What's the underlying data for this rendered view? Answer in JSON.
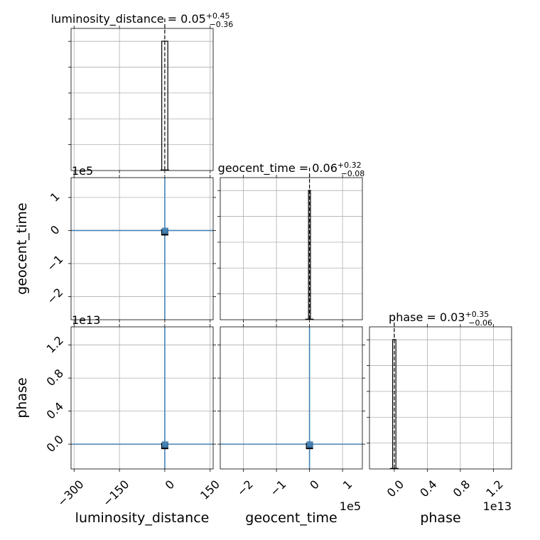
{
  "colors": {
    "series": "#4682b4",
    "frame": "#000000",
    "grid": "#b0b0b0",
    "background": "#ffffff"
  },
  "chart_data": {
    "type": "corner",
    "parameters": [
      "luminosity_distance",
      "geocent_time",
      "phase"
    ],
    "titles": {
      "luminosity_distance": {
        "text": "luminosity_distance = 0.05",
        "plus": "+0.45",
        "minus": "−0.36"
      },
      "geocent_time": {
        "text": "geocent_time = 0.06",
        "plus": "+0.32",
        "minus": "−0.08"
      },
      "phase": {
        "text": "phase = 0.03",
        "plus": "+0.35",
        "minus": "−0.06"
      }
    },
    "axis_labels": {
      "x": [
        "luminosity_distance",
        "geocent_time",
        "phase"
      ],
      "y": [
        "geocent_time",
        "phase"
      ]
    },
    "ranges": {
      "luminosity_distance": [
        -310,
        160
      ],
      "geocent_time": [
        -270000,
        160000
      ],
      "phase": [
        -3000000000000.0,
        14200000000000.0
      ]
    },
    "ticks": {
      "luminosity_distance": [
        {
          "v": -300,
          "label": "−300"
        },
        {
          "v": -150,
          "label": "−150"
        },
        {
          "v": 0,
          "label": "0"
        },
        {
          "v": 150,
          "label": "150"
        }
      ],
      "geocent_time": [
        {
          "v": -200000,
          "label": "−2"
        },
        {
          "v": -100000,
          "label": "−1"
        },
        {
          "v": 0,
          "label": "0"
        },
        {
          "v": 100000,
          "label": "1"
        }
      ],
      "phase": [
        {
          "v": 0,
          "label": "0.0"
        },
        {
          "v": 4000000000000.0,
          "label": "0.4"
        },
        {
          "v": 8000000000000.0,
          "label": "0.8"
        },
        {
          "v": 12000000000000.0,
          "label": "1.2"
        }
      ]
    },
    "y_ticks": {
      "geocent_time": [
        {
          "v": -200000,
          "label": "−2"
        },
        {
          "v": -100000,
          "label": "−1"
        },
        {
          "v": 0,
          "label": "0"
        },
        {
          "v": 100000,
          "label": "1"
        }
      ],
      "phase": [
        {
          "v": 0,
          "label": "0.0"
        },
        {
          "v": 4000000000000.0,
          "label": "0.4"
        },
        {
          "v": 8000000000000.0,
          "label": "0.8"
        },
        {
          "v": 12000000000000.0,
          "label": "1.2"
        }
      ]
    },
    "offset_texts": {
      "luminosity_distance_y": "1e5",
      "geocent_time_y": "1e13",
      "geocent_time_x": "1e5",
      "phase_x": "1e13"
    },
    "histograms": {
      "luminosity_distance": {
        "bins": [
          [
            -10,
            10
          ]
        ],
        "counts": [
          1
        ]
      },
      "geocent_time": {
        "bins": [
          [
            -3000,
            3000
          ]
        ],
        "counts": [
          1
        ]
      },
      "phase": {
        "bins": [
          [
            -200000000000.0,
            200000000000.0
          ]
        ],
        "counts": [
          1
        ]
      }
    },
    "quantiles": {
      "luminosity_distance": [
        -0.31,
        0.05,
        0.5
      ],
      "geocent_time": [
        -0.02,
        0.06,
        0.38
      ],
      "phase": [
        -0.03,
        0.03,
        0.38
      ]
    },
    "grid": true
  }
}
